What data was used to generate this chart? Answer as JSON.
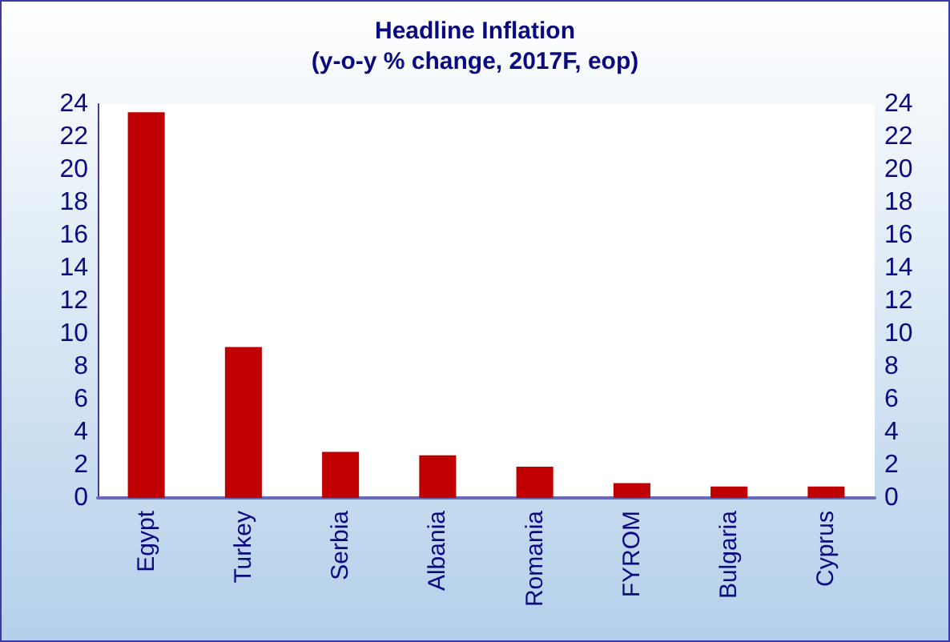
{
  "chart_data": {
    "type": "bar",
    "title": "Headline Inflation\n(y-o-y % change, 2017F, eop)",
    "categories": [
      "Egypt",
      "Turkey",
      "Serbia",
      "Albania",
      "Romania",
      "FYROM",
      "Bulgaria",
      "Cyprus"
    ],
    "values": [
      23.5,
      9.2,
      2.8,
      2.6,
      1.9,
      0.9,
      0.7,
      0.7
    ],
    "color": "#c00000",
    "ylim": [
      0,
      24
    ],
    "yticks": [
      0,
      2,
      4,
      6,
      8,
      10,
      12,
      14,
      16,
      18,
      20,
      22,
      24
    ],
    "y2lim": [
      0,
      24
    ],
    "y2ticks": [
      0,
      2,
      4,
      6,
      8,
      10,
      12,
      14,
      16,
      18,
      20,
      22,
      24
    ],
    "grid": false
  }
}
